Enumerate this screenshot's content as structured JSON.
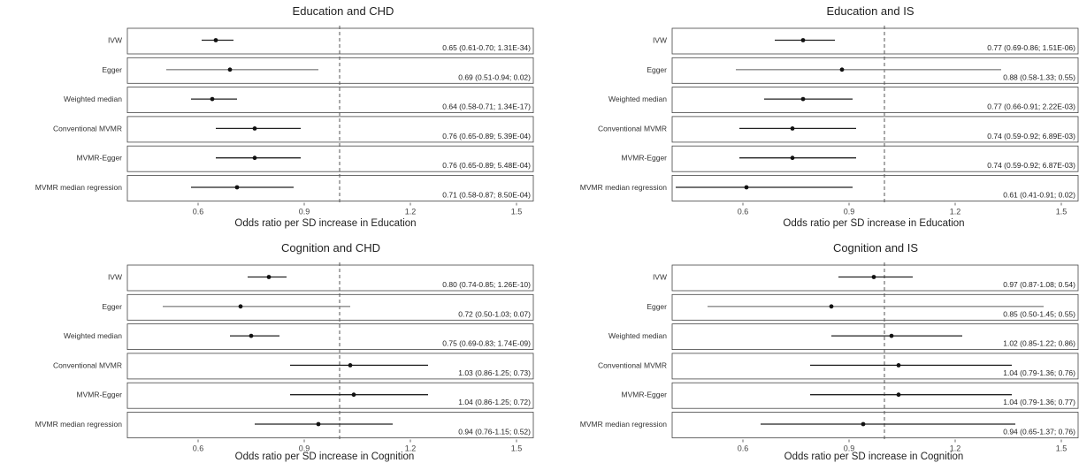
{
  "chart_data": [
    {
      "type": "forest",
      "title": "Education and CHD",
      "xlabel": "Odds ratio per SD increase in Education",
      "xlim": [
        0.4,
        1.55
      ],
      "xticks": [
        0.6,
        0.9,
        1.2,
        1.5
      ],
      "xtick_labels": [
        "0.6",
        "0.9",
        "1.2",
        "1.5"
      ],
      "reference_line": 1.0,
      "rows": [
        {
          "method": "IVW",
          "or": 0.65,
          "lo": 0.61,
          "hi": 0.7,
          "label": "0.65 (0.61-0.70; 1.31E-34)",
          "color": "#222222"
        },
        {
          "method": "Egger",
          "or": 0.69,
          "lo": 0.51,
          "hi": 0.94,
          "label": "0.69 (0.51-0.94; 0.02)",
          "color": "#888888"
        },
        {
          "method": "Weighted median",
          "or": 0.64,
          "lo": 0.58,
          "hi": 0.71,
          "label": "0.64 (0.58-0.71; 1.34E-17)",
          "color": "#222222"
        },
        {
          "method": "Conventional MVMR",
          "or": 0.76,
          "lo": 0.65,
          "hi": 0.89,
          "label": "0.76 (0.65-0.89; 5.39E-04)",
          "color": "#222222"
        },
        {
          "method": "MVMR-Egger",
          "or": 0.76,
          "lo": 0.65,
          "hi": 0.89,
          "label": "0.76 (0.65-0.89; 5.48E-04)",
          "color": "#222222"
        },
        {
          "method": "MVMR median regression",
          "or": 0.71,
          "lo": 0.58,
          "hi": 0.87,
          "label": "0.71 (0.58-0.87; 8.50E-04)",
          "color": "#222222"
        }
      ]
    },
    {
      "type": "forest",
      "title": "Education and IS",
      "xlabel": "Odds ratio per SD increase in Education",
      "xlim": [
        0.4,
        1.55
      ],
      "xticks": [
        0.6,
        0.9,
        1.2,
        1.5
      ],
      "xtick_labels": [
        "0.6",
        "0.9",
        "1.2",
        "1.5"
      ],
      "reference_line": 1.0,
      "rows": [
        {
          "method": "IVW",
          "or": 0.77,
          "lo": 0.69,
          "hi": 0.86,
          "label": "0.77 (0.69-0.86; 1.51E-06)",
          "color": "#222222"
        },
        {
          "method": "Egger",
          "or": 0.88,
          "lo": 0.58,
          "hi": 1.33,
          "label": "0.88 (0.58-1.33; 0.55)",
          "color": "#888888"
        },
        {
          "method": "Weighted median",
          "or": 0.77,
          "lo": 0.66,
          "hi": 0.91,
          "label": "0.77 (0.66-0.91; 2.22E-03)",
          "color": "#222222"
        },
        {
          "method": "Conventional MVMR",
          "or": 0.74,
          "lo": 0.59,
          "hi": 0.92,
          "label": "0.74 (0.59-0.92; 6.89E-03)",
          "color": "#222222"
        },
        {
          "method": "MVMR-Egger",
          "or": 0.74,
          "lo": 0.59,
          "hi": 0.92,
          "label": "0.74 (0.59-0.92; 6.87E-03)",
          "color": "#222222"
        },
        {
          "method": "MVMR median regression",
          "or": 0.61,
          "lo": 0.41,
          "hi": 0.91,
          "label": "0.61 (0.41-0.91; 0.02)",
          "color": "#222222"
        }
      ]
    },
    {
      "type": "forest",
      "title": "Cognition and CHD",
      "xlabel": "Odds ratio per SD increase in Cognition",
      "xlim": [
        0.4,
        1.55
      ],
      "xticks": [
        0.6,
        0.9,
        1.2,
        1.5
      ],
      "xtick_labels": [
        "0.6",
        "0.9",
        "1.2",
        "1.5"
      ],
      "reference_line": 1.0,
      "rows": [
        {
          "method": "IVW",
          "or": 0.8,
          "lo": 0.74,
          "hi": 0.85,
          "label": "0.80 (0.74-0.85; 1.26E-10)",
          "color": "#222222"
        },
        {
          "method": "Egger",
          "or": 0.72,
          "lo": 0.5,
          "hi": 1.03,
          "label": "0.72 (0.50-1.03; 0.07)",
          "color": "#888888"
        },
        {
          "method": "Weighted median",
          "or": 0.75,
          "lo": 0.69,
          "hi": 0.83,
          "label": "0.75 (0.69-0.83; 1.74E-09)",
          "color": "#222222"
        },
        {
          "method": "Conventional MVMR",
          "or": 1.03,
          "lo": 0.86,
          "hi": 1.25,
          "label": "1.03 (0.86-1.25; 0.73)",
          "color": "#222222"
        },
        {
          "method": "MVMR-Egger",
          "or": 1.04,
          "lo": 0.86,
          "hi": 1.25,
          "label": "1.04 (0.86-1.25; 0.72)",
          "color": "#222222"
        },
        {
          "method": "MVMR median regression",
          "or": 0.94,
          "lo": 0.76,
          "hi": 1.15,
          "label": "0.94 (0.76-1.15; 0.52)",
          "color": "#222222"
        }
      ]
    },
    {
      "type": "forest",
      "title": "Cognition and IS",
      "xlabel": "Odds ratio per SD increase in Cognition",
      "xlim": [
        0.4,
        1.55
      ],
      "xticks": [
        0.6,
        0.9,
        1.2,
        1.5
      ],
      "xtick_labels": [
        "0.6",
        "0.9",
        "1.2",
        "1.5"
      ],
      "reference_line": 1.0,
      "rows": [
        {
          "method": "IVW",
          "or": 0.97,
          "lo": 0.87,
          "hi": 1.08,
          "label": "0.97 (0.87-1.08; 0.54)",
          "color": "#222222"
        },
        {
          "method": "Egger",
          "or": 0.85,
          "lo": 0.5,
          "hi": 1.45,
          "label": "0.85 (0.50-1.45; 0.55)",
          "color": "#888888"
        },
        {
          "method": "Weighted median",
          "or": 1.02,
          "lo": 0.85,
          "hi": 1.22,
          "label": "1.02 (0.85-1.22; 0.86)",
          "color": "#222222"
        },
        {
          "method": "Conventional MVMR",
          "or": 1.04,
          "lo": 0.79,
          "hi": 1.36,
          "label": "1.04 (0.79-1.36; 0.76)",
          "color": "#222222"
        },
        {
          "method": "MVMR-Egger",
          "or": 1.04,
          "lo": 0.79,
          "hi": 1.36,
          "label": "1.04 (0.79-1.36; 0.77)",
          "color": "#222222"
        },
        {
          "method": "MVMR median regression",
          "or": 0.94,
          "lo": 0.65,
          "hi": 1.37,
          "label": "0.94 (0.65-1.37; 0.76)",
          "color": "#222222"
        }
      ]
    }
  ]
}
